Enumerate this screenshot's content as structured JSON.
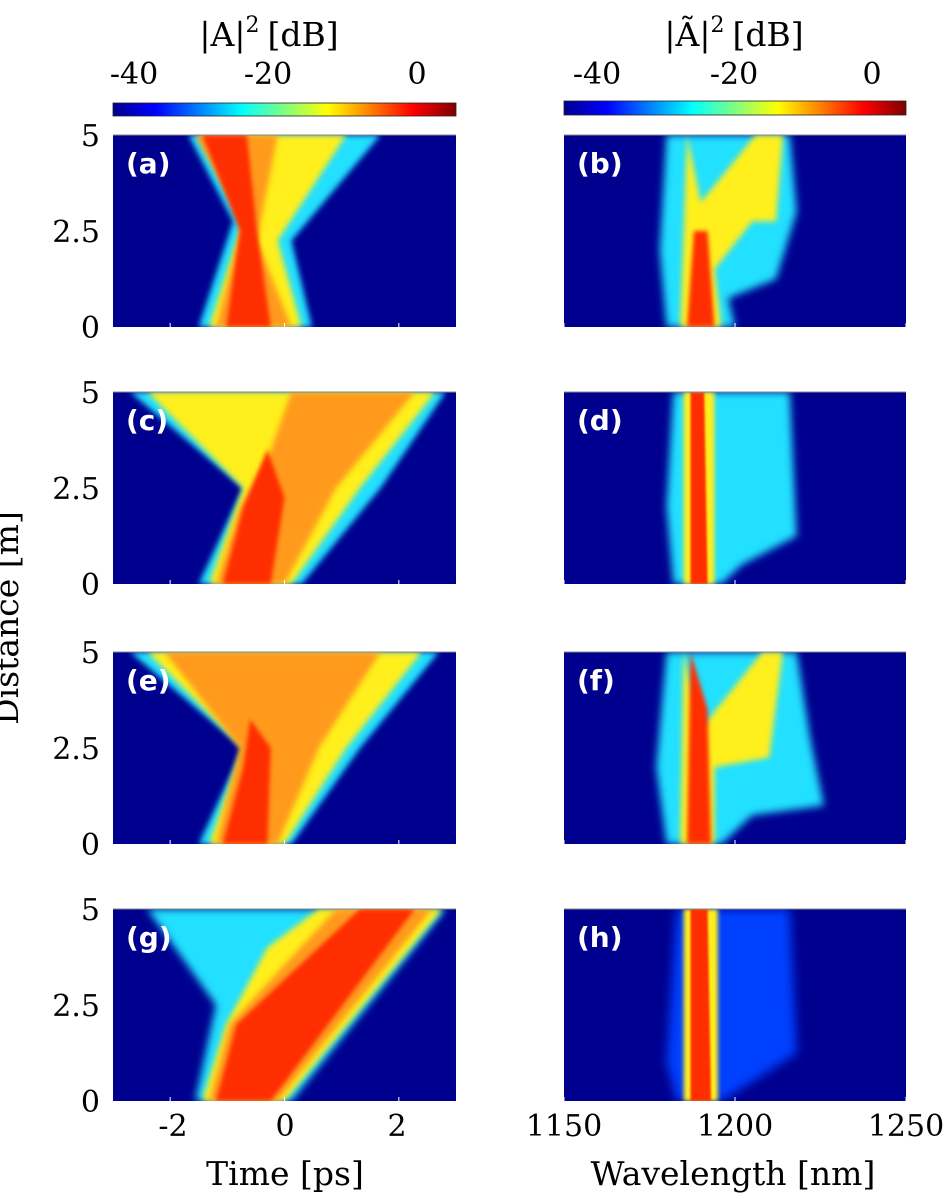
{
  "chart_data": {
    "type": "heatmap",
    "layout": "4 rows by 2 columns",
    "shared_ylabel": "Distance [m]",
    "colorbars": [
      {
        "title_prefix": "|A|",
        "title_sup": "2",
        "title_unit": "[dB]",
        "range": [
          -45,
          5
        ],
        "ticks": [
          -40,
          -20,
          0
        ],
        "tick_labels": [
          "-40",
          "-20",
          "0"
        ],
        "colormap": "jet"
      },
      {
        "title_prefix": "|Ã|",
        "title_sup": "2",
        "title_unit": "[dB]",
        "range": [
          -45,
          5
        ],
        "ticks": [
          -40,
          -20,
          0
        ],
        "tick_labels": [
          "-40",
          "-20",
          "0"
        ],
        "colormap": "jet"
      }
    ],
    "columns": [
      {
        "quantity": "time domain intensity",
        "xlabel": "Time [ps]",
        "xlim": [
          -3,
          3
        ],
        "xticks": [
          -2,
          0,
          2
        ],
        "xtick_labels": [
          "-2",
          "0",
          "2"
        ]
      },
      {
        "quantity": "spectral intensity",
        "xlabel": "Wavelength [nm]",
        "xlim": [
          1150,
          1250
        ],
        "xticks": [
          1150,
          1200,
          1250
        ],
        "xtick_labels": [
          "1150",
          "1200",
          "1250"
        ]
      }
    ],
    "ylim": [
      0,
      5
    ],
    "yticks": [
      0,
      2.5,
      5
    ],
    "ytick_labels": [
      "0",
      "2.5",
      "5"
    ],
    "panels": [
      {
        "label": "(a)",
        "row": 0,
        "col": 0
      },
      {
        "label": "(b)",
        "row": 0,
        "col": 1
      },
      {
        "label": "(c)",
        "row": 1,
        "col": 0
      },
      {
        "label": "(d)",
        "row": 1,
        "col": 1
      },
      {
        "label": "(e)",
        "row": 2,
        "col": 0
      },
      {
        "label": "(f)",
        "row": 2,
        "col": 1
      },
      {
        "label": "(g)",
        "row": 3,
        "col": 0
      },
      {
        "label": "(h)",
        "row": 3,
        "col": 1
      }
    ]
  }
}
